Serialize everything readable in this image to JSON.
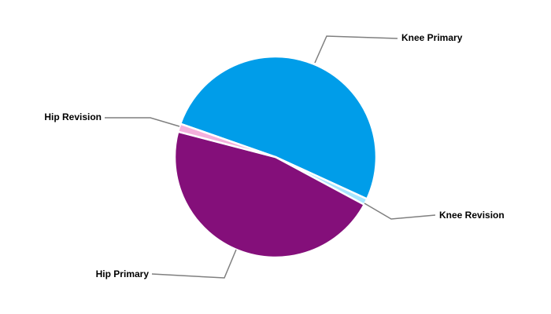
{
  "chart_data": {
    "type": "pie",
    "title": "",
    "legend": "none (labels with leader lines)",
    "slices": [
      {
        "label": "Knee Primary",
        "value": 51.5,
        "color": "#009de9"
      },
      {
        "label": "Knee Revision",
        "value": 1.0,
        "color": "#a8e6ff"
      },
      {
        "label": "Hip Primary",
        "value": 46.2,
        "color": "#840f7a"
      },
      {
        "label": "Hip Revision",
        "value": 1.3,
        "color": "#f4b0dc"
      }
    ]
  }
}
